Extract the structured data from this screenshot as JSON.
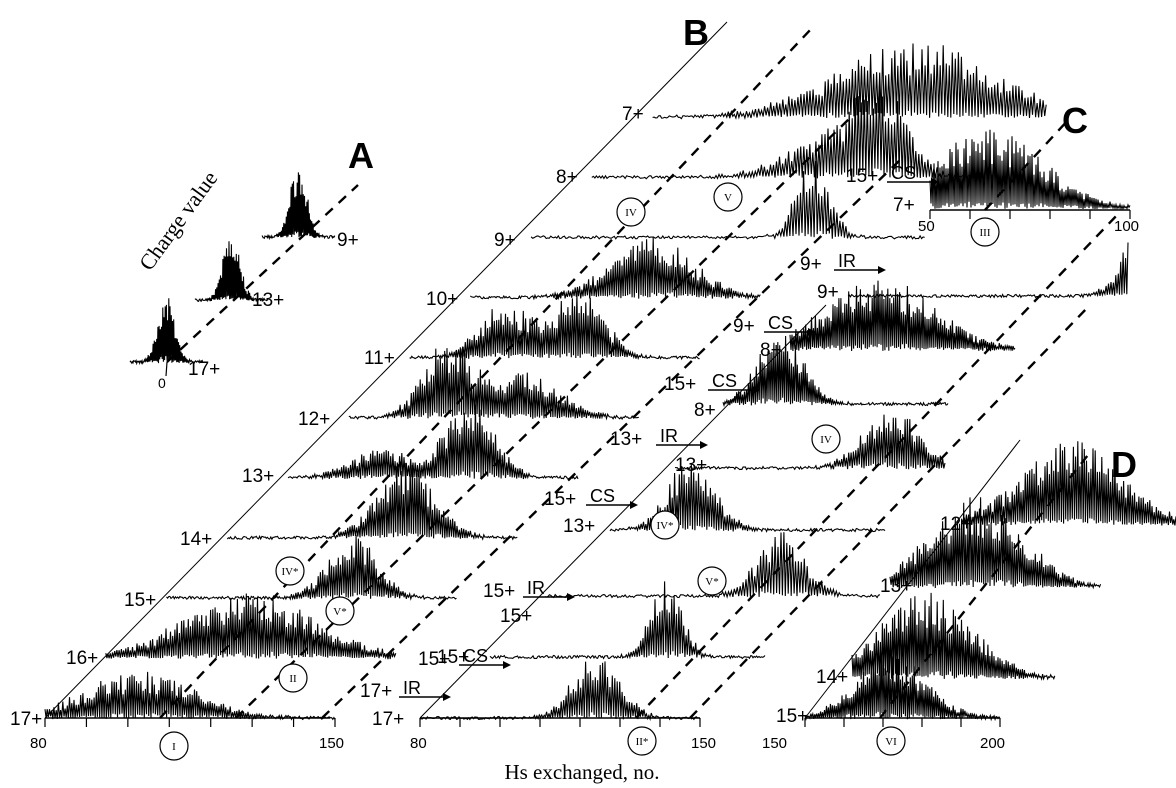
{
  "figure": {
    "xlabel": "Hs exchanged, no.",
    "panel_c_axis_label": "7+",
    "panel_d_axis_label": "15+"
  },
  "chart_data": [
    {
      "panel": "A",
      "type": "line",
      "ylabel": "Charge value",
      "series": [
        {
          "name": "17+",
          "center": 0,
          "height": 0.85,
          "width": 4
        },
        {
          "name": "13+",
          "center": 0,
          "height": 0.85,
          "width": 4
        },
        {
          "name": "9+",
          "center": 0,
          "height": 0.85,
          "width": 4
        }
      ],
      "tick_labels": [
        "0"
      ]
    },
    {
      "panel": "B",
      "type": "line",
      "xlim": [
        80,
        150
      ],
      "tick_labels": [
        "80",
        "150"
      ],
      "ticks": [
        80,
        90,
        100,
        110,
        120,
        130,
        140,
        150
      ],
      "series": [
        {
          "name": "17+",
          "peaks": [
            {
              "center": 103,
              "width": 13,
              "height": 0.55
            }
          ]
        },
        {
          "name": "16+",
          "peaks": [
            {
              "center": 115,
              "width": 16,
              "height": 0.75
            }
          ]
        },
        {
          "name": "15+",
          "peaks": [
            {
              "center": 125,
              "width": 6,
              "height": 0.75
            }
          ]
        },
        {
          "name": "14+",
          "peaks": [
            {
              "center": 123,
              "width": 7,
              "height": 0.9
            }
          ]
        },
        {
          "name": "13+",
          "peaks": [
            {
              "center": 102,
              "width": 7,
              "height": 0.35
            },
            {
              "center": 124,
              "width": 6,
              "height": 0.9
            }
          ]
        },
        {
          "name": "12+",
          "peaks": [
            {
              "center": 104,
              "width": 6,
              "height": 0.9
            },
            {
              "center": 123,
              "width": 8,
              "height": 0.55
            }
          ]
        },
        {
          "name": "11+",
          "peaks": [
            {
              "center": 103,
              "width": 6,
              "height": 0.65
            },
            {
              "center": 121,
              "width": 6,
              "height": 0.8
            }
          ]
        },
        {
          "name": "10+",
          "peaks": [
            {
              "center": 124,
              "width": 10,
              "height": 0.7
            }
          ]
        },
        {
          "name": "9+",
          "peaks": [
            {
              "center": 148,
              "width": 4,
              "height": 0.95
            }
          ]
        },
        {
          "name": "8+",
          "peaks": [
            {
              "center": 138,
              "width": 11,
              "height": 0.5
            },
            {
              "center": 150,
              "width": 6,
              "height": 0.9
            }
          ]
        },
        {
          "name": "7+",
          "peaks": [
            {
              "center": 143,
              "width": 19,
              "height": 0.9
            }
          ]
        }
      ],
      "annotations": [
        "I",
        "II",
        "IV",
        "V",
        "IV*",
        "V*"
      ]
    },
    {
      "panel": "B2",
      "type": "line",
      "xlim": [
        80,
        150
      ],
      "tick_labels": [
        "80",
        "150"
      ],
      "ticks": [
        80,
        90,
        100,
        110,
        120,
        130,
        140,
        150
      ],
      "series": [
        {
          "name": "17+",
          "source": "17+",
          "method": "IR",
          "peaks": [
            {
              "center": 129,
              "width": 6,
              "height": 0.8
            }
          ]
        },
        {
          "name": "15+",
          "source": "17+",
          "method": "CS",
          "peaks": [
            {
              "center": 130,
              "width": 4,
              "height": 0.95
            }
          ]
        },
        {
          "name": "15+",
          "source": "15+",
          "method": "IR",
          "peaks": [
            {
              "center": 135,
              "width": 5,
              "height": 0.8
            }
          ]
        },
        {
          "name": "13+",
          "source": "15+",
          "method": "CS",
          "peaks": [
            {
              "center": 103,
              "width": 6,
              "height": 0.9
            }
          ]
        },
        {
          "name": "13+",
          "source": "13+",
          "method": "IR",
          "peaks": [
            {
              "center": 142,
              "width": 7,
              "height": 0.8
            }
          ]
        },
        {
          "name": "8+",
          "source": "15+",
          "method": "CS",
          "peaks": [
            {
              "center": 100,
              "width": 7,
              "height": 0.95
            }
          ]
        },
        {
          "name": "8+",
          "source": "9+",
          "method": "CS",
          "peaks": [
            {
              "center": 111,
              "width": 17,
              "height": 0.9
            }
          ]
        },
        {
          "name": "9+",
          "source": "9+",
          "method": "IR",
          "peaks": [
            {
              "center": 162,
              "width": 5,
              "height": 0.95
            }
          ]
        }
      ],
      "annotations": [
        "II*",
        "IV",
        "IV*",
        "V*"
      ]
    },
    {
      "panel": "C",
      "type": "line",
      "xlim": [
        50,
        100
      ],
      "tick_labels": [
        "50",
        "100"
      ],
      "ticks": [
        50,
        60,
        70,
        80,
        90,
        100
      ],
      "series": [
        {
          "name": "7+",
          "source": "15+",
          "method": "CS",
          "peaks": [
            {
              "center": 65,
              "width": 13,
              "height": 0.95
            }
          ]
        }
      ],
      "annotations": [
        "III"
      ]
    },
    {
      "panel": "D",
      "type": "line",
      "xlim": [
        150,
        200
      ],
      "tick_labels": [
        "150",
        "200"
      ],
      "ticks": [
        150,
        160,
        170,
        180,
        190,
        200
      ],
      "series": [
        {
          "name": "15+",
          "peaks": [
            {
              "center": 172,
              "width": 9,
              "height": 0.75
            }
          ]
        },
        {
          "name": "14+",
          "peaks": [
            {
              "center": 169,
              "width": 12,
              "height": 0.95
            }
          ]
        },
        {
          "name": "13+",
          "peaks": [
            {
              "center": 172,
              "width": 12,
              "height": 1.0
            }
          ]
        },
        {
          "name": "12+",
          "peaks": [
            {
              "center": 178,
              "width": 13,
              "height": 0.95
            }
          ]
        }
      ],
      "annotations": [
        "VI"
      ]
    }
  ],
  "labels": {
    "panel_a": "A",
    "panel_b": "B",
    "panel_c": "C",
    "panel_d": "D",
    "a_axis_0": "0",
    "a_charge_value": "Charge value",
    "a17": "17+",
    "a13": "13+",
    "a9": "9+",
    "b17": "17+",
    "b16": "16+",
    "b15": "15+",
    "b14": "14+",
    "b13": "13+",
    "b12": "12+",
    "b11": "11+",
    "b10": "10+",
    "b9": "9+",
    "b8": "8+",
    "b7": "7+",
    "b_ax80": "80",
    "b_ax150": "150",
    "b2_ax80": "80",
    "b2_ax150": "150",
    "c_ax50": "50",
    "c_ax100": "100",
    "d_ax150": "150",
    "d_ax200": "200",
    "rn_I": "I",
    "rn_II": "II",
    "rn_IV": "IV",
    "rn_V": "V",
    "rn_IVs": "IV*",
    "rn_Vs": "V*",
    "rn_IIs": "II*",
    "rn_IV2": "IV",
    "rn_IVs2": "IV*",
    "rn_Vs2": "V*",
    "rn_III": "III",
    "rn_VI": "VI",
    "p17a": "17+",
    "p17b": "17+",
    "p15a": "15+",
    "p15b": "15+",
    "p15c": "15+",
    "p15d": "15+",
    "p15e": "15+",
    "p13a": "13+",
    "p13b": "13+",
    "p13c": "13+",
    "p8a": "8+",
    "p8b": "8+",
    "p9a": "9+",
    "p9b": "9+",
    "p9c": "9+",
    "m_IR1": "IR",
    "m_CS1": "CS",
    "m_IR2": "IR",
    "m_CS2": "CS",
    "m_IR3": "IR",
    "m_CS3": "CS",
    "m_CS4": "CS",
    "m_IR4": "IR",
    "m_CS5": "CS",
    "d15": "15+",
    "d14": "14+",
    "d13": "13+",
    "d12": "12+"
  }
}
